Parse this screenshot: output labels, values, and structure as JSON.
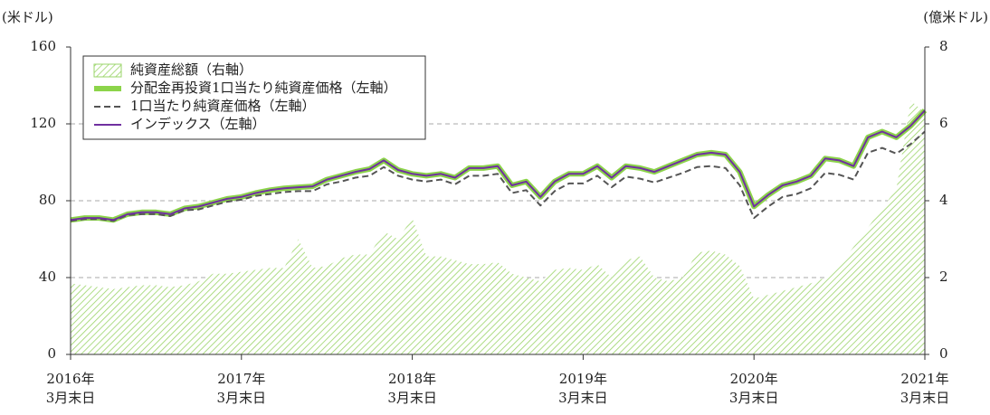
{
  "chart_data": {
    "type": "line",
    "y_label": "(米ドル)",
    "y2_label": "(億米ドル)",
    "categories": [
      "2016年\n3月末日",
      null,
      null,
      null,
      null,
      null,
      null,
      null,
      null,
      null,
      null,
      null,
      "2017年\n3月末日",
      null,
      null,
      null,
      null,
      null,
      null,
      null,
      null,
      null,
      null,
      null,
      "2018年\n3月末日",
      null,
      null,
      null,
      null,
      null,
      null,
      null,
      null,
      null,
      null,
      null,
      "2019年\n3月末日",
      null,
      null,
      null,
      null,
      null,
      null,
      null,
      null,
      null,
      null,
      null,
      "2020年\n3月末日",
      null,
      null,
      null,
      null,
      null,
      null,
      null,
      null,
      null,
      null,
      null,
      "2021年\n3月末日"
    ],
    "ylim": [
      0,
      160
    ],
    "yticks": [
      0,
      40,
      80,
      120,
      160
    ],
    "y2lim": [
      0,
      8
    ],
    "y2ticks": [
      0,
      2,
      4,
      6,
      8
    ],
    "grid": true,
    "legend": "upper left",
    "series": [
      {
        "name": "純資産総額（右軸）",
        "color": "#9ad468",
        "kind": "area",
        "axis": "y2",
        "values": [
          1.85,
          1.8,
          1.75,
          1.7,
          1.75,
          1.8,
          1.8,
          1.75,
          1.8,
          1.9,
          2.1,
          2.1,
          2.15,
          2.2,
          2.25,
          2.25,
          3.0,
          2.25,
          2.3,
          2.5,
          2.6,
          2.6,
          3.2,
          3.0,
          3.55,
          2.55,
          2.55,
          2.45,
          2.35,
          2.35,
          2.4,
          2.1,
          2.0,
          1.9,
          2.2,
          2.25,
          2.2,
          2.35,
          2.0,
          2.45,
          2.55,
          2.0,
          1.9,
          2.0,
          2.65,
          2.7,
          2.6,
          2.3,
          1.45,
          1.55,
          1.65,
          1.75,
          1.85,
          2.0,
          2.3,
          2.8,
          3.3,
          3.8,
          4.3,
          6.6,
          6.3
        ]
      },
      {
        "name": "分配金再投資1口当たり純資産価格（左軸）",
        "color": "#8cd44a",
        "kind": "thick",
        "values": [
          70,
          71,
          71,
          70,
          73,
          74,
          74,
          73,
          76,
          77,
          79,
          81,
          82,
          84,
          85.5,
          86.5,
          87,
          87.5,
          91,
          93,
          95,
          96.5,
          101,
          96,
          94,
          93,
          94,
          92,
          97,
          97,
          98,
          88,
          90,
          82,
          90,
          94,
          94,
          98,
          92,
          98,
          97,
          95,
          98,
          101,
          104,
          105,
          104,
          95,
          77,
          83,
          88,
          90,
          93,
          102,
          101,
          98,
          113,
          116,
          113,
          119,
          127
        ]
      },
      {
        "name": "1口当たり純資産価格（左軸）",
        "color": "#555555",
        "kind": "dashed",
        "values": [
          69.5,
          70.5,
          70.5,
          69.5,
          72.5,
          73,
          73,
          72,
          75,
          75.5,
          77.5,
          79.5,
          80.5,
          82.5,
          83.5,
          84.5,
          85,
          85,
          88.5,
          90,
          92,
          93,
          97.5,
          93,
          91,
          90,
          91,
          88.5,
          93,
          93,
          94,
          84,
          85.5,
          77.5,
          85,
          89,
          89,
          93,
          87,
          92.5,
          91.5,
          89.5,
          92,
          94.5,
          97.5,
          98,
          97,
          88,
          71,
          77,
          82,
          83.5,
          86.5,
          94.5,
          93.5,
          91,
          105,
          107.5,
          104.5,
          109.5,
          116
        ]
      },
      {
        "name": "インデックス（左軸）",
        "color": "#7030a0",
        "kind": "thin",
        "values": [
          70,
          71,
          71,
          70,
          73,
          74,
          74,
          73,
          76,
          77,
          79,
          81,
          82,
          84,
          85.5,
          86.5,
          87,
          87.5,
          91,
          93,
          95,
          96.5,
          101,
          96,
          94,
          93,
          94,
          92,
          97,
          97,
          98,
          88,
          90,
          82,
          90,
          94,
          94,
          98,
          92,
          98,
          97,
          95,
          98,
          101,
          104,
          105,
          104,
          95,
          77,
          83,
          88,
          90,
          93,
          102,
          101,
          98,
          113,
          116,
          113,
          119,
          127
        ]
      }
    ]
  }
}
